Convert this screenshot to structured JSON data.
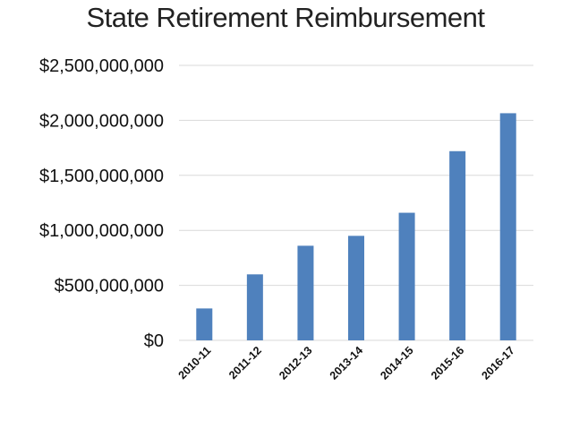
{
  "chart_data": {
    "type": "bar",
    "title": "State Retirement Reimbursement",
    "xlabel": "",
    "ylabel": "",
    "categories": [
      "2010-11",
      "2011-12",
      "2012-13",
      "2013-14",
      "2014-15",
      "2015-16",
      "2016-17"
    ],
    "values": [
      290000000,
      600000000,
      860000000,
      950000000,
      1160000000,
      1720000000,
      2065000000
    ],
    "ylim": [
      0,
      2500000000
    ],
    "yticks": [
      0,
      500000000,
      1000000000,
      1500000000,
      2000000000,
      2500000000
    ],
    "ytick_labels": [
      "$0",
      "$500,000,000",
      "$1,000,000,000",
      "$1,500,000,000",
      "$2,000,000,000",
      "$2,500,000,000"
    ],
    "grid": true,
    "legend": "none",
    "bar_color": "#4f81bd",
    "grid_color": "#d9d9d9"
  }
}
